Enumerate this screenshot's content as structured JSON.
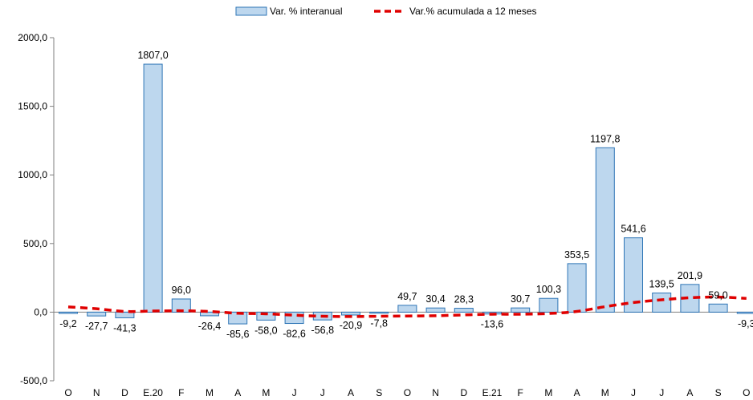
{
  "chart_data": {
    "type": "bar",
    "categories": [
      "O",
      "N",
      "D",
      "E.20",
      "F",
      "M",
      "A",
      "M",
      "J",
      "J",
      "A",
      "S",
      "O",
      "N",
      "D",
      "E.21",
      "F",
      "M",
      "A",
      "M",
      "J",
      "J",
      "A",
      "S",
      "O"
    ],
    "series": [
      {
        "name": "Var. % interanual",
        "type": "bar",
        "values": [
          -9.2,
          -27.7,
          -41.3,
          1807.0,
          96.0,
          -26.4,
          -85.6,
          -58.0,
          -82.6,
          -56.8,
          -20.9,
          -7.8,
          49.7,
          30.4,
          28.3,
          -13.6,
          30.7,
          100.3,
          353.5,
          1197.8,
          541.6,
          139.5,
          201.9,
          59.0,
          -9.3
        ],
        "labels": [
          "-9,2",
          "-27,7",
          "-41,3",
          "1807,0",
          "96,0",
          "-26,4",
          "-85,6",
          "-58,0",
          "-82,6",
          "-56,8",
          "-20,9",
          "-7,8",
          "49,7",
          "30,4",
          "28,3",
          "-13,6",
          "30,7",
          "100,3",
          "353,5",
          "1197,8",
          "541,6",
          "139,5",
          "201,9",
          "59,0",
          "-9,3"
        ],
        "color": "#bdd7ee",
        "border": "#2e75b6"
      },
      {
        "name": "Var.% acumulada a 12 meses",
        "type": "line",
        "values": [
          38,
          25,
          5,
          8,
          10,
          5,
          -8,
          -12,
          -22,
          -30,
          -32,
          -30,
          -28,
          -26,
          -20,
          -15,
          -15,
          -10,
          5,
          40,
          70,
          90,
          105,
          110,
          100
        ],
        "color": "#e00000"
      }
    ],
    "ylim": [
      -500,
      2000
    ],
    "yticks": [
      "-500,0",
      "0,0",
      "500,0",
      "1000,0",
      "1500,0",
      "2000,0"
    ],
    "ytick_values": [
      -500,
      0,
      500,
      1000,
      1500,
      2000
    ],
    "title": "",
    "xlabel": "",
    "ylabel": "",
    "legend_position": "top-center",
    "grid": false
  }
}
